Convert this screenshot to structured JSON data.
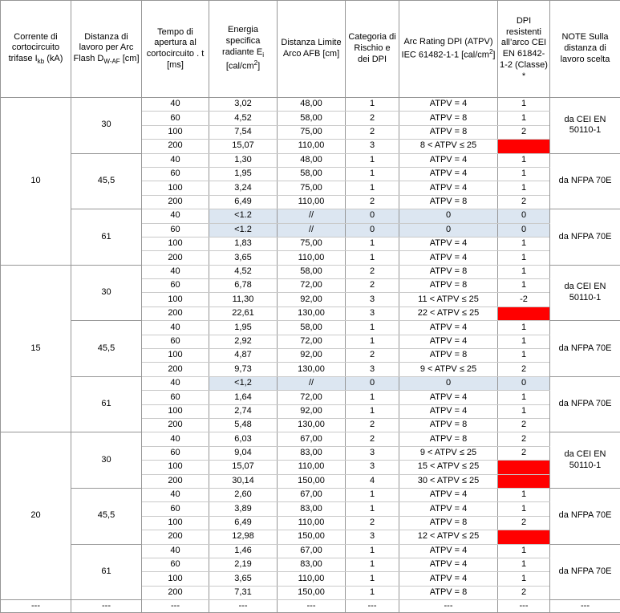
{
  "colors": {
    "highlight_blue": "#dce6f1",
    "alert_red": "#ff0000",
    "grid_gray": "#969696"
  },
  "table": {
    "columns": [
      {
        "id": "current",
        "parts": [
          {
            "t": "Corrente di cortocircuito trifase I"
          },
          {
            "t": "kb",
            "s": "sub"
          },
          {
            "t": " (kA)"
          }
        ]
      },
      {
        "id": "distance",
        "parts": [
          {
            "t": "Distanza di lavoro per Arc Flash D"
          },
          {
            "t": "W-AF",
            "s": "sub"
          },
          {
            "t": " [cm]"
          }
        ]
      },
      {
        "id": "time",
        "parts": [
          {
            "t": "Tempo di apertura al cortocircuito . t [ms]"
          }
        ]
      },
      {
        "id": "energy",
        "parts": [
          {
            "t": "Energia specifica radiante E"
          },
          {
            "t": "i",
            "s": "sub"
          },
          {
            "t": " [cal/cm"
          },
          {
            "t": "2",
            "s": "sup"
          },
          {
            "t": "]"
          }
        ]
      },
      {
        "id": "afb",
        "parts": [
          {
            "t": "Distanza Limite Arco AFB [cm]"
          }
        ]
      },
      {
        "id": "category",
        "parts": [
          {
            "t": "Categoria di Rischio e dei DPI"
          }
        ]
      },
      {
        "id": "atpv",
        "parts": [
          {
            "t": "Arc Rating DPI (ATPV) IEC 61482-1-1 [cal/cm"
          },
          {
            "t": "2",
            "s": "sup"
          },
          {
            "t": "]"
          }
        ]
      },
      {
        "id": "class",
        "parts": [
          {
            "t": "DPI resistenti all’arco CEI EN 61842-1-2 (Classe) *"
          }
        ]
      },
      {
        "id": "note",
        "parts": [
          {
            "t": "NOTE Sulla distanza di lavoro scelta"
          }
        ]
      }
    ],
    "groups": [
      {
        "current": "10",
        "subgroups": [
          {
            "distance": "30",
            "note": "da CEI EN 50110-1",
            "rows": [
              {
                "t": "40",
                "e": "3,02",
                "afb": "48,00",
                "cat": "1",
                "atpv": "ATPV = 4",
                "cl": "1"
              },
              {
                "t": "60",
                "e": "4,52",
                "afb": "58,00",
                "cat": "2",
                "atpv": "ATPV = 8",
                "cl": "1"
              },
              {
                "t": "100",
                "e": "7,54",
                "afb": "75,00",
                "cat": "2",
                "atpv": "ATPV = 8",
                "cl": "2"
              },
              {
                "t": "200",
                "e": "15,07",
                "afb": "110,00",
                "cat": "3",
                "atpv": "8 < ATPV ≤ 25",
                "cl": "",
                "clRed": true
              }
            ]
          },
          {
            "distance": "45,5",
            "note": "da NFPA 70E",
            "rows": [
              {
                "t": "40",
                "e": "1,30",
                "afb": "48,00",
                "cat": "1",
                "atpv": "ATPV = 4",
                "cl": "1"
              },
              {
                "t": "60",
                "e": "1,95",
                "afb": "58,00",
                "cat": "1",
                "atpv": "ATPV = 4",
                "cl": "1"
              },
              {
                "t": "100",
                "e": "3,24",
                "afb": "75,00",
                "cat": "1",
                "atpv": "ATPV = 4",
                "cl": "1"
              },
              {
                "t": "200",
                "e": "6,49",
                "afb": "110,00",
                "cat": "2",
                "atpv": "ATPV = 8",
                "cl": "2"
              }
            ]
          },
          {
            "distance": "61",
            "note": "da NFPA 70E",
            "rows": [
              {
                "t": "40",
                "e": "<1.2",
                "afb": "//",
                "cat": "0",
                "atpv": "0",
                "cl": "0",
                "hl": true
              },
              {
                "t": "60",
                "e": "<1.2",
                "afb": "//",
                "cat": "0",
                "atpv": "0",
                "cl": "0",
                "hl": true
              },
              {
                "t": "100",
                "e": "1,83",
                "afb": "75,00",
                "cat": "1",
                "atpv": "ATPV = 4",
                "cl": "1"
              },
              {
                "t": "200",
                "e": "3,65",
                "afb": "110,00",
                "cat": "1",
                "atpv": "ATPV = 4",
                "cl": "1"
              }
            ]
          }
        ]
      },
      {
        "current": "15",
        "subgroups": [
          {
            "distance": "30",
            "note": "da CEI EN 50110-1",
            "rows": [
              {
                "t": "40",
                "e": "4,52",
                "afb": "58,00",
                "cat": "2",
                "atpv": "ATPV = 8",
                "cl": "1"
              },
              {
                "t": "60",
                "e": "6,78",
                "afb": "72,00",
                "cat": "2",
                "atpv": "ATPV = 8",
                "cl": "1"
              },
              {
                "t": "100",
                "e": "11,30",
                "afb": "92,00",
                "cat": "3",
                "atpv": "11 < ATPV ≤ 25",
                "cl": "-2"
              },
              {
                "t": "200",
                "e": "22,61",
                "afb": "130,00",
                "cat": "3",
                "atpv": "22 < ATPV ≤ 25",
                "cl": "",
                "clRed": true
              }
            ]
          },
          {
            "distance": "45,5",
            "note": "da NFPA 70E",
            "rows": [
              {
                "t": "40",
                "e": "1,95",
                "afb": "58,00",
                "cat": "1",
                "atpv": "ATPV = 4",
                "cl": "1"
              },
              {
                "t": "60",
                "e": "2,92",
                "afb": "72,00",
                "cat": "1",
                "atpv": "ATPV = 4",
                "cl": "1"
              },
              {
                "t": "100",
                "e": "4,87",
                "afb": "92,00",
                "cat": "2",
                "atpv": "ATPV = 8",
                "cl": "1"
              },
              {
                "t": "200",
                "e": "9,73",
                "afb": "130,00",
                "cat": "3",
                "atpv": "9 < ATPV ≤ 25",
                "cl": "2"
              }
            ]
          },
          {
            "distance": "61",
            "note": "da NFPA 70E",
            "rows": [
              {
                "t": "40",
                "e": "<1,2",
                "afb": "//",
                "cat": "0",
                "atpv": "0",
                "cl": "0",
                "hl": true
              },
              {
                "t": "60",
                "e": "1,64",
                "afb": "72,00",
                "cat": "1",
                "atpv": "ATPV = 4",
                "cl": "1"
              },
              {
                "t": "100",
                "e": "2,74",
                "afb": "92,00",
                "cat": "1",
                "atpv": "ATPV = 4",
                "cl": "1"
              },
              {
                "t": "200",
                "e": "5,48",
                "afb": "130,00",
                "cat": "2",
                "atpv": "ATPV = 8",
                "cl": "2"
              }
            ]
          }
        ]
      },
      {
        "current": "20",
        "subgroups": [
          {
            "distance": "30",
            "note": "da CEI EN 50110-1",
            "rows": [
              {
                "t": "40",
                "e": "6,03",
                "afb": "67,00",
                "cat": "2",
                "atpv": "ATPV = 8",
                "cl": "2"
              },
              {
                "t": "60",
                "e": "9,04",
                "afb": "83,00",
                "cat": "3",
                "atpv": "9 < ATPV ≤ 25",
                "cl": "2"
              },
              {
                "t": "100",
                "e": "15,07",
                "afb": "110,00",
                "cat": "3",
                "atpv": "15 < ATPV ≤ 25",
                "cl": "",
                "clRed": true
              },
              {
                "t": "200",
                "e": "30,14",
                "afb": "150,00",
                "cat": "4",
                "atpv": "30 < ATPV ≤ 25",
                "cl": "",
                "clRed": true
              }
            ]
          },
          {
            "distance": "45,5",
            "note": "da NFPA 70E",
            "rows": [
              {
                "t": "40",
                "e": "2,60",
                "afb": "67,00",
                "cat": "1",
                "atpv": "ATPV = 4",
                "cl": "1"
              },
              {
                "t": "60",
                "e": "3,89",
                "afb": "83,00",
                "cat": "1",
                "atpv": "ATPV = 4",
                "cl": "1"
              },
              {
                "t": "100",
                "e": "6,49",
                "afb": "110,00",
                "cat": "2",
                "atpv": "ATPV = 8",
                "cl": "2"
              },
              {
                "t": "200",
                "e": "12,98",
                "afb": "150,00",
                "cat": "3",
                "atpv": "12 < ATPV ≤ 25",
                "cl": "",
                "clRed": true
              }
            ]
          },
          {
            "distance": "61",
            "note": "da NFPA 70E",
            "rows": [
              {
                "t": "40",
                "e": "1,46",
                "afb": "67,00",
                "cat": "1",
                "atpv": "ATPV = 4",
                "cl": "1"
              },
              {
                "t": "60",
                "e": "2,19",
                "afb": "83,00",
                "cat": "1",
                "atpv": "ATPV = 4",
                "cl": "1"
              },
              {
                "t": "100",
                "e": "3,65",
                "afb": "110,00",
                "cat": "1",
                "atpv": "ATPV = 4",
                "cl": "1"
              },
              {
                "t": "200",
                "e": "7,31",
                "afb": "150,00",
                "cat": "1",
                "atpv": "ATPV = 8",
                "cl": "2"
              }
            ]
          }
        ]
      }
    ],
    "footer": [
      "---",
      "---",
      "---",
      "---",
      "---",
      "---",
      "---",
      "---",
      "---"
    ]
  }
}
